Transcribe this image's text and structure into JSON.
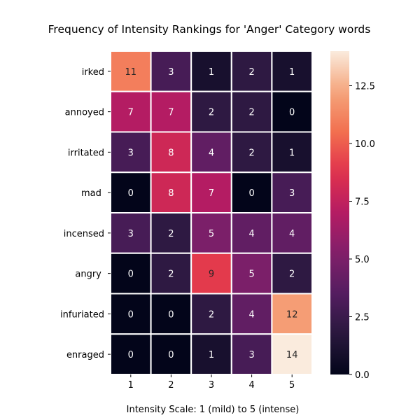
{
  "chart_data": {
    "type": "heatmap",
    "title": "Frequency of Intensity Rankings for 'Anger' Category words",
    "xlabel": "Intensity Scale: 1 (mild) to 5 (intense)",
    "ylabel": "",
    "x": [
      "1",
      "2",
      "3",
      "4",
      "5"
    ],
    "y": [
      "irked",
      "annoyed",
      "irritated",
      "mad ",
      "incensed",
      "angry ",
      "infuriated",
      "enraged"
    ],
    "values": [
      [
        11,
        3,
        1,
        2,
        1
      ],
      [
        7,
        7,
        2,
        2,
        0
      ],
      [
        3,
        8,
        4,
        2,
        1
      ],
      [
        0,
        8,
        7,
        0,
        3
      ],
      [
        3,
        2,
        5,
        4,
        4
      ],
      [
        0,
        2,
        9,
        5,
        2
      ],
      [
        0,
        0,
        2,
        4,
        12
      ],
      [
        0,
        0,
        1,
        3,
        14
      ]
    ],
    "colormap": "rocket",
    "colorbar": {
      "vmin": 0,
      "vmax": 14,
      "ticks": [
        0.0,
        2.5,
        5.0,
        7.5,
        10.0,
        12.5
      ],
      "tick_labels": [
        "0.0",
        "2.5",
        "5.0",
        "7.5",
        "10.0",
        "12.5"
      ]
    },
    "grid_line_color": "#ffffff",
    "annotation_colors": {
      "light": "#ffffff",
      "dark": "#262626"
    }
  }
}
